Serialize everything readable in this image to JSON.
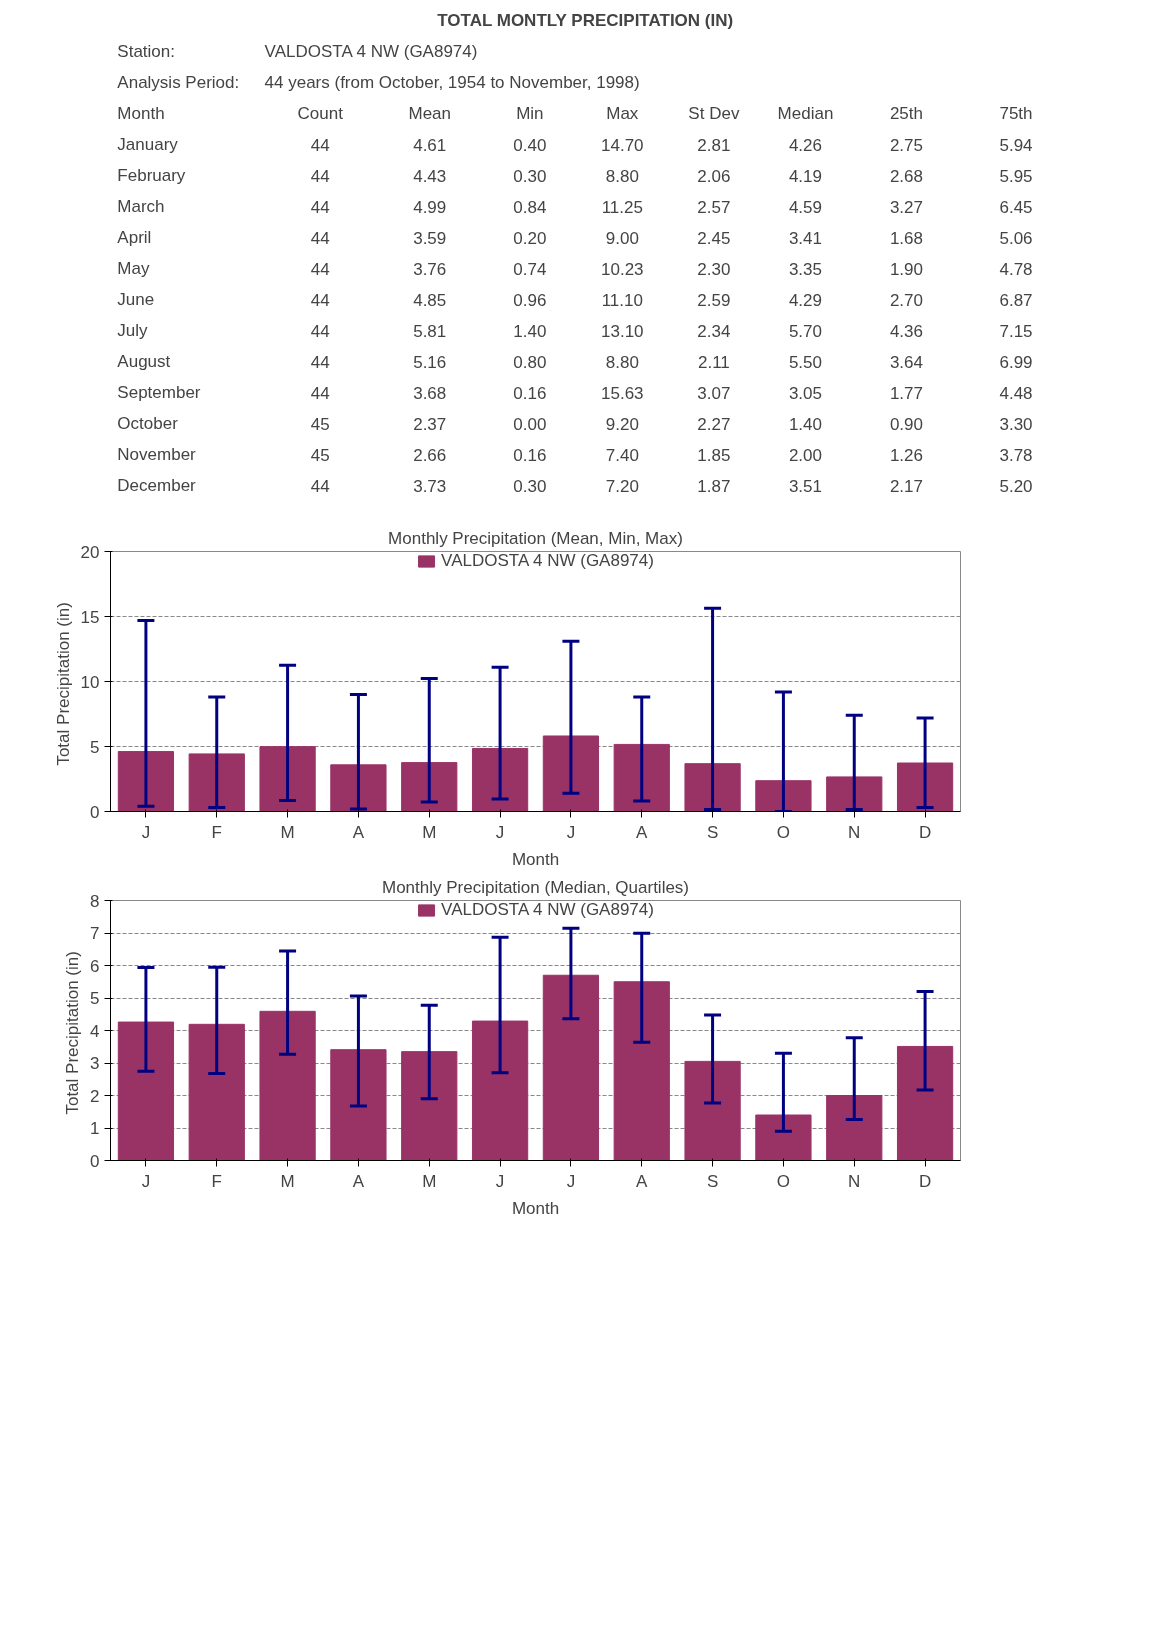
{
  "chart_data": [
    {
      "type": "other",
      "title": "TOTAL MONTLY PRECIPITATION (IN)",
      "annotations": [
        "Station:",
        "VALDOSTA 4 NW (GA8974)",
        "Analysis Period:",
        "44 years (from October, 1954 to November, 1998)"
      ],
      "xlabel": "Month",
      "categories": [
        "January",
        "February",
        "March",
        "April",
        "May",
        "June",
        "July",
        "August",
        "September",
        "October",
        "November",
        "December"
      ],
      "series": [
        {
          "name": "Count",
          "values": [
            44,
            44,
            44,
            44,
            44,
            44,
            44,
            44,
            44,
            45,
            45,
            44
          ],
          "value_labels": [
            "44",
            "44",
            "44",
            "44",
            "44",
            "44",
            "44",
            "44",
            "44",
            "45",
            "45",
            "44"
          ]
        },
        {
          "name": "Mean",
          "values": [
            4.61,
            4.43,
            4.99,
            3.59,
            3.76,
            4.85,
            5.81,
            5.16,
            3.68,
            2.37,
            2.66,
            3.73
          ],
          "value_labels": [
            "4.61",
            "4.43",
            "4.99",
            "3.59",
            "3.76",
            "4.85",
            "5.81",
            "5.16",
            "3.68",
            "2.37",
            "2.66",
            "3.73"
          ]
        },
        {
          "name": "Min",
          "values": [
            0.4,
            0.3,
            0.84,
            0.2,
            0.74,
            0.96,
            1.4,
            0.8,
            0.16,
            0.0,
            0.16,
            0.3
          ],
          "value_labels": [
            "0.40",
            "0.30",
            "0.84",
            "0.20",
            "0.74",
            "0.96",
            "1.40",
            "0.80",
            "0.16",
            "0.00",
            "0.16",
            "0.30"
          ]
        },
        {
          "name": "Max",
          "values": [
            14.7,
            8.8,
            11.25,
            9.0,
            10.23,
            11.1,
            13.1,
            8.8,
            15.63,
            9.2,
            7.4,
            7.2
          ],
          "value_labels": [
            "14.70",
            "8.80",
            "11.25",
            "9.00",
            "10.23",
            "11.10",
            "13.10",
            "8.80",
            "15.63",
            "9.20",
            "7.40",
            "7.20"
          ]
        },
        {
          "name": "St Dev",
          "values": [
            2.81,
            2.06,
            2.57,
            2.45,
            2.3,
            2.59,
            2.34,
            2.11,
            3.07,
            2.27,
            1.85,
            1.87
          ],
          "value_labels": [
            "2.81",
            "2.06",
            "2.57",
            "2.45",
            "2.30",
            "2.59",
            "2.34",
            "2.11",
            "3.07",
            "2.27",
            "1.85",
            "1.87"
          ]
        },
        {
          "name": "Median",
          "values": [
            4.26,
            4.19,
            4.59,
            3.41,
            3.35,
            4.29,
            5.7,
            5.5,
            3.05,
            1.4,
            2.0,
            3.51
          ],
          "value_labels": [
            "4.26",
            "4.19",
            "4.59",
            "3.41",
            "3.35",
            "4.29",
            "5.70",
            "5.50",
            "3.05",
            "1.40",
            "2.00",
            "3.51"
          ]
        },
        {
          "name": "25th",
          "values": [
            2.75,
            2.68,
            3.27,
            1.68,
            1.9,
            2.7,
            4.36,
            3.64,
            1.77,
            0.9,
            1.26,
            2.17
          ],
          "value_labels": [
            "2.75",
            "2.68",
            "3.27",
            "1.68",
            "1.90",
            "2.70",
            "4.36",
            "3.64",
            "1.77",
            "0.90",
            "1.26",
            "2.17"
          ]
        },
        {
          "name": "75th",
          "values": [
            5.94,
            5.95,
            6.45,
            5.06,
            4.78,
            6.87,
            7.15,
            6.99,
            4.48,
            3.3,
            3.78,
            5.2
          ],
          "value_labels": [
            "5.94",
            "5.95",
            "6.45",
            "5.06",
            "4.78",
            "6.87",
            "7.15",
            "6.99",
            "4.48",
            "3.30",
            "3.78",
            "5.20"
          ]
        }
      ]
    },
    {
      "type": "bar",
      "title": "Monthly Precipitation (Mean, Min, Max)",
      "xlabel": "Month",
      "ylabel": "Total Precipitation  (in)",
      "categories": [
        "J",
        "F",
        "M",
        "A",
        "M",
        "J",
        "J",
        "A",
        "S",
        "O",
        "N",
        "D"
      ],
      "series": [
        {
          "name": "VALDOSTA 4 NW (GA8974)",
          "color": "#993366",
          "values": [
            4.61,
            4.43,
            4.99,
            3.59,
            3.76,
            4.85,
            5.81,
            5.16,
            3.68,
            2.37,
            2.66,
            3.73
          ],
          "errors": [
            [
              0.4,
              14.7
            ],
            [
              0.3,
              8.8
            ],
            [
              0.84,
              11.25
            ],
            [
              0.2,
              9.0
            ],
            [
              0.74,
              10.23
            ],
            [
              0.96,
              11.1
            ],
            [
              1.4,
              13.1
            ],
            [
              0.8,
              8.8
            ],
            [
              0.16,
              15.63
            ],
            [
              0.0,
              9.2
            ],
            [
              0.16,
              7.4
            ],
            [
              0.3,
              7.2
            ]
          ]
        }
      ],
      "ylim": [
        0,
        20
      ],
      "yticks": [
        0,
        5,
        10,
        15,
        20
      ],
      "grid": "y",
      "legend": "top"
    },
    {
      "type": "bar",
      "title": "Monthly Precipitation (Median, Quartiles)",
      "xlabel": "Month",
      "ylabel": "Total Precipitation  (in)",
      "categories": [
        "J",
        "F",
        "M",
        "A",
        "M",
        "J",
        "J",
        "A",
        "S",
        "O",
        "N",
        "D"
      ],
      "series": [
        {
          "name": "VALDOSTA 4 NW (GA8974)",
          "color": "#993366",
          "values": [
            4.26,
            4.19,
            4.59,
            3.41,
            3.35,
            4.29,
            5.7,
            5.5,
            3.05,
            1.4,
            2.0,
            3.51
          ],
          "errors": [
            [
              2.75,
              5.94
            ],
            [
              2.68,
              5.95
            ],
            [
              3.27,
              6.45
            ],
            [
              1.68,
              5.06
            ],
            [
              1.9,
              4.78
            ],
            [
              2.7,
              6.87
            ],
            [
              4.36,
              7.15
            ],
            [
              3.64,
              6.99
            ],
            [
              1.77,
              4.48
            ],
            [
              0.9,
              3.3
            ],
            [
              1.26,
              3.78
            ],
            [
              2.17,
              5.2
            ]
          ]
        }
      ],
      "ylim": [
        0,
        8
      ],
      "yticks": [
        0,
        1,
        2,
        3,
        4,
        5,
        6,
        7,
        8
      ],
      "grid": "y",
      "legend": "top"
    }
  ]
}
